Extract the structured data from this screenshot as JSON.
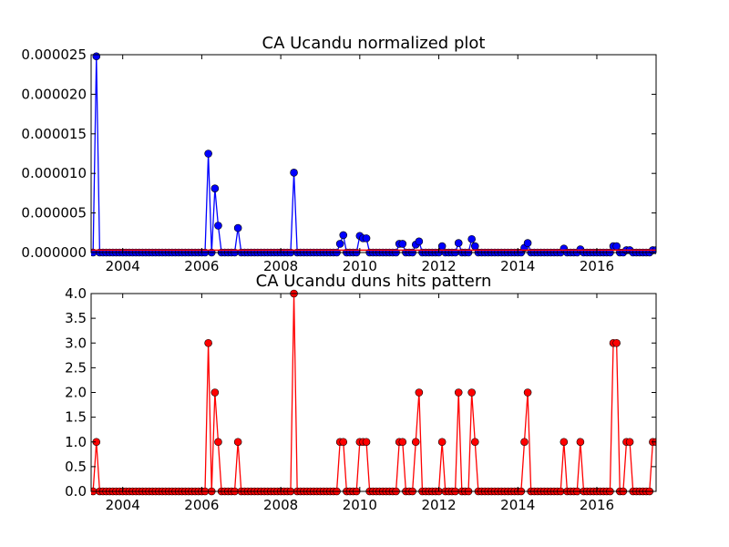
{
  "chart_data": [
    {
      "type": "line",
      "title": "CA Ucandu normalized plot",
      "xlabel": "",
      "ylabel": "",
      "xlim": [
        2003.2,
        2017.5
      ],
      "ylim": [
        0,
        2.5e-05
      ],
      "x_ticks": [
        2004,
        2006,
        2008,
        2010,
        2012,
        2014,
        2016
      ],
      "x_tick_labels": [
        "2004",
        "2006",
        "2008",
        "2010",
        "2012",
        "2014",
        "2016"
      ],
      "y_ticks": [
        0,
        5e-06,
        1e-05,
        1.5e-05,
        2e-05,
        2.5e-05
      ],
      "y_tick_labels": [
        "0.000000",
        "0.000005",
        "0.000010",
        "0.000015",
        "0.000020",
        "0.000025"
      ],
      "grid": false,
      "series": [
        {
          "color": "#0000ff",
          "peaks": [
            [
              2003.33,
              2.48e-05
            ],
            [
              2006.17,
              1.25e-05
            ],
            [
              2006.33,
              8.1e-06
            ],
            [
              2006.42,
              3.4e-06
            ],
            [
              2006.92,
              3.1e-06
            ],
            [
              2008.33,
              1.01e-05
            ],
            [
              2009.5,
              1.1e-06
            ],
            [
              2009.58,
              2.2e-06
            ],
            [
              2010.0,
              2.1e-06
            ],
            [
              2010.08,
              1.8e-06
            ],
            [
              2010.17,
              1.8e-06
            ],
            [
              2011.0,
              1.1e-06
            ],
            [
              2011.08,
              1.1e-06
            ],
            [
              2011.42,
              1e-06
            ],
            [
              2011.5,
              1.4e-06
            ],
            [
              2012.08,
              8e-07
            ],
            [
              2012.5,
              1.2e-06
            ],
            [
              2012.83,
              1.7e-06
            ],
            [
              2012.92,
              8e-07
            ],
            [
              2014.17,
              6e-07
            ],
            [
              2014.25,
              1.2e-06
            ],
            [
              2015.17,
              5e-07
            ],
            [
              2015.58,
              4e-07
            ],
            [
              2016.42,
              8e-07
            ],
            [
              2016.5,
              8e-07
            ],
            [
              2016.75,
              3e-07
            ],
            [
              2016.83,
              3e-07
            ],
            [
              2017.42,
              3e-07
            ],
            [
              2017.5,
              3e-07
            ]
          ]
        },
        {
          "color": "#ff0000",
          "style": "flat baseline",
          "value": 3e-07
        }
      ]
    },
    {
      "type": "line",
      "title": "CA Ucandu duns hits pattern",
      "xlabel": "",
      "ylabel": "",
      "xlim": [
        2003.2,
        2017.5
      ],
      "ylim": [
        0,
        4
      ],
      "x_ticks": [
        2004,
        2006,
        2008,
        2010,
        2012,
        2014,
        2016
      ],
      "x_tick_labels": [
        "2004",
        "2006",
        "2008",
        "2010",
        "2012",
        "2014",
        "2016"
      ],
      "y_ticks": [
        0,
        0.5,
        1,
        1.5,
        2,
        2.5,
        3,
        3.5,
        4
      ],
      "y_tick_labels": [
        "0.0",
        "0.5",
        "1.0",
        "1.5",
        "2.0",
        "2.5",
        "3.0",
        "3.5",
        "4.0"
      ],
      "grid": false,
      "series": [
        {
          "color": "#ff0000",
          "peaks": [
            [
              2003.33,
              1
            ],
            [
              2006.17,
              3
            ],
            [
              2006.33,
              2
            ],
            [
              2006.42,
              1
            ],
            [
              2006.92,
              1
            ],
            [
              2008.33,
              4
            ],
            [
              2009.5,
              1
            ],
            [
              2009.58,
              1
            ],
            [
              2010.0,
              1
            ],
            [
              2010.08,
              1
            ],
            [
              2010.17,
              1
            ],
            [
              2011.0,
              1
            ],
            [
              2011.08,
              1
            ],
            [
              2011.42,
              1
            ],
            [
              2011.5,
              2
            ],
            [
              2012.08,
              1
            ],
            [
              2012.5,
              2
            ],
            [
              2012.83,
              2
            ],
            [
              2012.92,
              1
            ],
            [
              2014.17,
              1
            ],
            [
              2014.25,
              2
            ],
            [
              2015.17,
              1
            ],
            [
              2015.58,
              1
            ],
            [
              2016.42,
              3
            ],
            [
              2016.5,
              3
            ],
            [
              2016.75,
              1
            ],
            [
              2016.83,
              1
            ],
            [
              2017.42,
              1
            ],
            [
              2017.5,
              1
            ]
          ]
        }
      ]
    }
  ]
}
